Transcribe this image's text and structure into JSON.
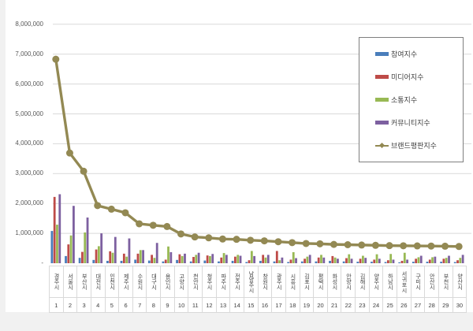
{
  "page": {
    "background": "#f1f1f1",
    "panel_background": "#ffffff",
    "gridline_color": "#d9d9d9",
    "axis_text_color": "#595959"
  },
  "chart_data": {
    "type": "bar",
    "combo": "grouped-bars-with-line-overlay",
    "title": "",
    "xlabel": "",
    "ylabel": "",
    "ylim": [
      0,
      8000000
    ],
    "ytick_interval": 1000000,
    "grid": true,
    "legend_position": "inside-upper-right",
    "categories": [
      "경주시",
      "서울시",
      "부산시",
      "대전시",
      "인천시",
      "제주시",
      "수원시",
      "대구시",
      "용인시",
      "고양시",
      "천안시",
      "청주시",
      "파주시",
      "전주시",
      "남양주시",
      "창원시",
      "광주시",
      "시흥시",
      "김포시",
      "평택시",
      "화성시",
      "안양시",
      "김해시",
      "양주시",
      "하남시",
      "서귀포시",
      "구미시",
      "안산시",
      "부천시",
      "양산시"
    ],
    "ranks": [
      "1",
      "2",
      "3",
      "4",
      "5",
      "6",
      "7",
      "8",
      "9",
      "10",
      "11",
      "12",
      "13",
      "14",
      "15",
      "16",
      "17",
      "18",
      "19",
      "20",
      "21",
      "22",
      "23",
      "24",
      "25",
      "26",
      "27",
      "28",
      "29",
      "30"
    ],
    "yticks": [
      {
        "v": 8000000,
        "label": "8,000,000"
      },
      {
        "v": 7000000,
        "label": "7,000,000"
      },
      {
        "v": 6000000,
        "label": "6,000,000"
      },
      {
        "v": 5000000,
        "label": "5,000,000"
      },
      {
        "v": 4000000,
        "label": "4,000,000"
      },
      {
        "v": 3000000,
        "label": "3,000,000"
      },
      {
        "v": 2000000,
        "label": "2,000,000"
      },
      {
        "v": 1000000,
        "label": "1,000,000"
      },
      {
        "v": 0,
        "label": "-"
      }
    ],
    "series": [
      {
        "name": "참여지수",
        "type": "bar",
        "color": "#4a7ebb",
        "values": [
          1080000,
          240000,
          180000,
          110000,
          80000,
          80000,
          120000,
          90000,
          60000,
          110000,
          60000,
          90000,
          60000,
          80000,
          40000,
          80000,
          60000,
          40000,
          60000,
          60000,
          80000,
          60000,
          50000,
          50000,
          40000,
          30000,
          50000,
          50000,
          50000,
          40000
        ]
      },
      {
        "name": "미디어지수",
        "type": "bar",
        "color": "#be4b48",
        "values": [
          2220000,
          630000,
          380000,
          460000,
          400000,
          320000,
          320000,
          280000,
          120000,
          300000,
          210000,
          260000,
          190000,
          220000,
          100000,
          280000,
          410000,
          120000,
          150000,
          190000,
          240000,
          170000,
          150000,
          120000,
          100000,
          80000,
          150000,
          120000,
          150000,
          100000
        ]
      },
      {
        "name": "소통지수",
        "type": "bar",
        "color": "#98b954",
        "values": [
          1290000,
          930000,
          1030000,
          570000,
          350000,
          220000,
          440000,
          180000,
          560000,
          240000,
          280000,
          240000,
          340000,
          280000,
          410000,
          190000,
          100000,
          370000,
          220000,
          280000,
          190000,
          300000,
          250000,
          300000,
          310000,
          350000,
          200000,
          200000,
          180000,
          180000
        ]
      },
      {
        "name": "커뮤니티지수",
        "type": "bar",
        "color": "#7d60a0",
        "values": [
          2310000,
          1920000,
          1530000,
          1000000,
          880000,
          830000,
          440000,
          680000,
          370000,
          320000,
          350000,
          310000,
          280000,
          250000,
          240000,
          280000,
          190000,
          170000,
          280000,
          190000,
          150000,
          150000,
          180000,
          150000,
          120000,
          120000,
          250000,
          220000,
          250000,
          280000
        ]
      },
      {
        "name": "브랜드평판지수",
        "type": "line",
        "color": "#938953",
        "values": [
          6830000,
          3690000,
          3080000,
          1930000,
          1810000,
          1690000,
          1320000,
          1270000,
          1230000,
          980000,
          880000,
          850000,
          810000,
          800000,
          770000,
          750000,
          720000,
          690000,
          660000,
          650000,
          630000,
          620000,
          610000,
          600000,
          590000,
          585000,
          580000,
          575000,
          570000,
          560000
        ]
      }
    ]
  }
}
